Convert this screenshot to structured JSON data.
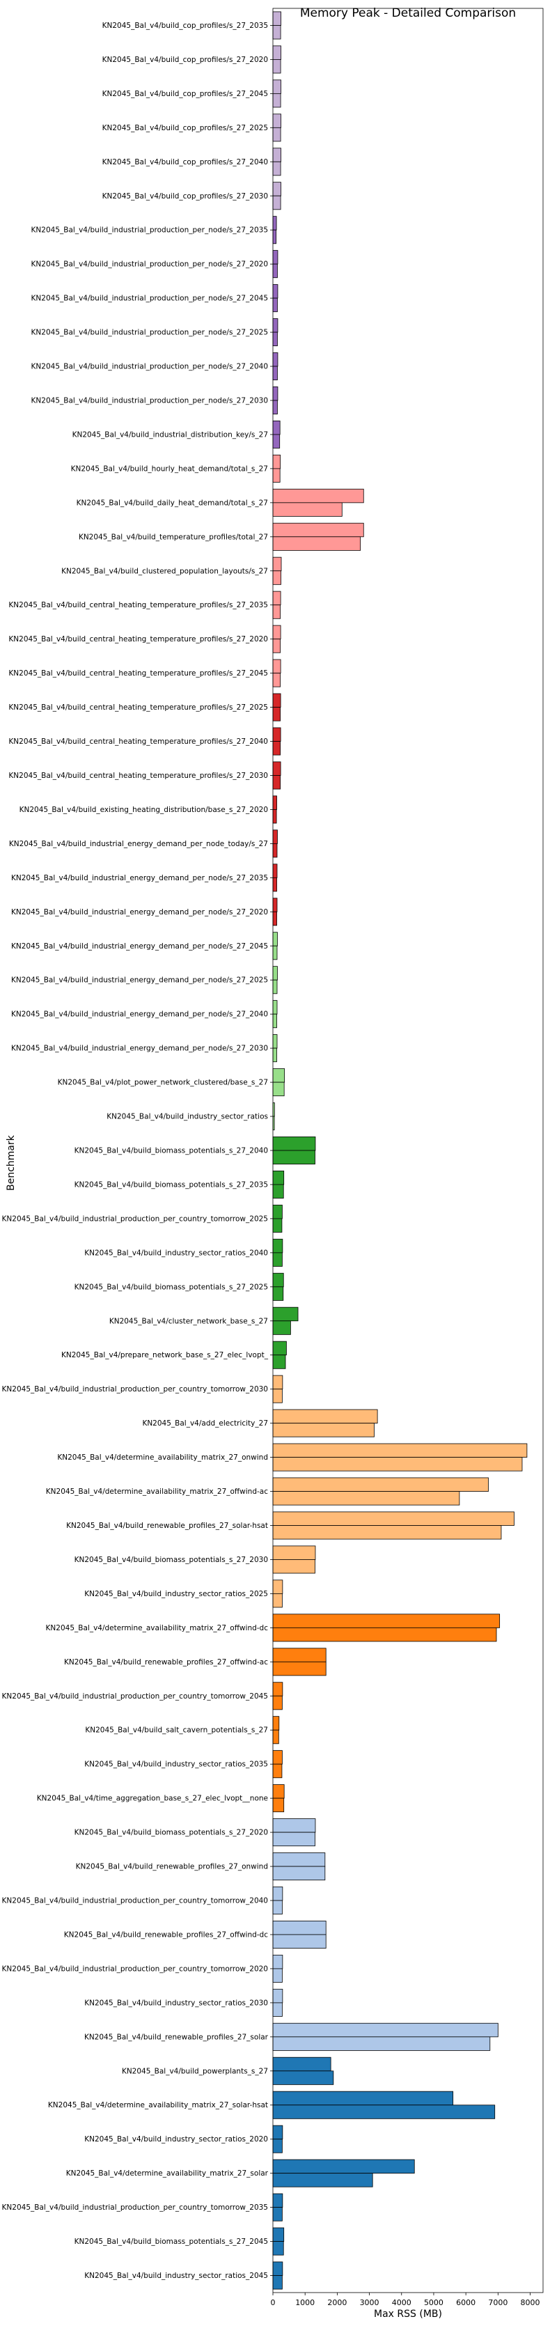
{
  "chart_data": {
    "type": "bar",
    "orientation": "horizontal",
    "title": "Memory Peak - Detailed Comparison",
    "xlabel": "Max RSS (MB)",
    "ylabel": "Benchmark",
    "xlim": [
      0,
      8400
    ],
    "xticks": [
      0,
      1000,
      2000,
      3000,
      4000,
      5000,
      6000,
      7000,
      8000
    ],
    "grid": false,
    "legend": "none",
    "categories": [
      "KN2045_Bal_v4/build_cop_profiles/s_27_2035",
      "KN2045_Bal_v4/build_cop_profiles/s_27_2020",
      "KN2045_Bal_v4/build_cop_profiles/s_27_2045",
      "KN2045_Bal_v4/build_cop_profiles/s_27_2025",
      "KN2045_Bal_v4/build_cop_profiles/s_27_2040",
      "KN2045_Bal_v4/build_cop_profiles/s_27_2030",
      "KN2045_Bal_v4/build_industrial_production_per_node/s_27_2035",
      "KN2045_Bal_v4/build_industrial_production_per_node/s_27_2020",
      "KN2045_Bal_v4/build_industrial_production_per_node/s_27_2045",
      "KN2045_Bal_v4/build_industrial_production_per_node/s_27_2025",
      "KN2045_Bal_v4/build_industrial_production_per_node/s_27_2040",
      "KN2045_Bal_v4/build_industrial_production_per_node/s_27_2030",
      "KN2045_Bal_v4/build_industrial_distribution_key/s_27",
      "KN2045_Bal_v4/build_hourly_heat_demand/total_s_27",
      "KN2045_Bal_v4/build_daily_heat_demand/total_s_27",
      "KN2045_Bal_v4/build_temperature_profiles/total_27",
      "KN2045_Bal_v4/build_clustered_population_layouts/s_27",
      "KN2045_Bal_v4/build_central_heating_temperature_profiles/s_27_2035",
      "KN2045_Bal_v4/build_central_heating_temperature_profiles/s_27_2020",
      "KN2045_Bal_v4/build_central_heating_temperature_profiles/s_27_2045",
      "KN2045_Bal_v4/build_central_heating_temperature_profiles/s_27_2025",
      "KN2045_Bal_v4/build_central_heating_temperature_profiles/s_27_2040",
      "KN2045_Bal_v4/build_central_heating_temperature_profiles/s_27_2030",
      "KN2045_Bal_v4/build_existing_heating_distribution/base_s_27_2020",
      "KN2045_Bal_v4/build_industrial_energy_demand_per_node_today/s_27",
      "KN2045_Bal_v4/build_industrial_energy_demand_per_node/s_27_2035",
      "KN2045_Bal_v4/build_industrial_energy_demand_per_node/s_27_2020",
      "KN2045_Bal_v4/build_industrial_energy_demand_per_node/s_27_2045",
      "KN2045_Bal_v4/build_industrial_energy_demand_per_node/s_27_2025",
      "KN2045_Bal_v4/build_industrial_energy_demand_per_node/s_27_2040",
      "KN2045_Bal_v4/build_industrial_energy_demand_per_node/s_27_2030",
      "KN2045_Bal_v4/plot_power_network_clustered/base_s_27",
      "KN2045_Bal_v4/build_industry_sector_ratios",
      "KN2045_Bal_v4/build_biomass_potentials_s_27_2040",
      "KN2045_Bal_v4/build_biomass_potentials_s_27_2035",
      "KN2045_Bal_v4/build_industrial_production_per_country_tomorrow_2025",
      "KN2045_Bal_v4/build_industry_sector_ratios_2040",
      "KN2045_Bal_v4/build_biomass_potentials_s_27_2025",
      "KN2045_Bal_v4/cluster_network_base_s_27",
      "KN2045_Bal_v4/prepare_network_base_s_27_elec_lvopt_",
      "KN2045_Bal_v4/build_industrial_production_per_country_tomorrow_2030",
      "KN2045_Bal_v4/add_electricity_27",
      "KN2045_Bal_v4/determine_availability_matrix_27_onwind",
      "KN2045_Bal_v4/determine_availability_matrix_27_offwind-ac",
      "KN2045_Bal_v4/build_renewable_profiles_27_solar-hsat",
      "KN2045_Bal_v4/build_biomass_potentials_s_27_2030",
      "KN2045_Bal_v4/build_industry_sector_ratios_2025",
      "KN2045_Bal_v4/determine_availability_matrix_27_offwind-dc",
      "KN2045_Bal_v4/build_renewable_profiles_27_offwind-ac",
      "KN2045_Bal_v4/build_industrial_production_per_country_tomorrow_2045",
      "KN2045_Bal_v4/build_salt_cavern_potentials_s_27",
      "KN2045_Bal_v4/build_industry_sector_ratios_2035",
      "KN2045_Bal_v4/time_aggregation_base_s_27_elec_lvopt__none",
      "KN2045_Bal_v4/build_biomass_potentials_s_27_2020",
      "KN2045_Bal_v4/build_renewable_profiles_27_onwind",
      "KN2045_Bal_v4/build_industrial_production_per_country_tomorrow_2040",
      "KN2045_Bal_v4/build_renewable_profiles_27_offwind-dc",
      "KN2045_Bal_v4/build_industrial_production_per_country_tomorrow_2020",
      "KN2045_Bal_v4/build_industry_sector_ratios_2030",
      "KN2045_Bal_v4/build_renewable_profiles_27_solar",
      "KN2045_Bal_v4/build_powerplants_s_27",
      "KN2045_Bal_v4/determine_availability_matrix_27_solar-hsat",
      "KN2045_Bal_v4/build_industry_sector_ratios_2020",
      "KN2045_Bal_v4/determine_availability_matrix_27_solar",
      "KN2045_Bal_v4/build_industrial_production_per_country_tomorrow_2035",
      "KN2045_Bal_v4/build_biomass_potentials_s_27_2045",
      "KN2045_Bal_v4/build_industry_sector_ratios_2045"
    ],
    "bars": [
      {
        "v": [
          250,
          240
        ],
        "c": "#c5b0d5"
      },
      {
        "v": [
          250,
          240
        ],
        "c": "#c5b0d5"
      },
      {
        "v": [
          250,
          240
        ],
        "c": "#c5b0d5"
      },
      {
        "v": [
          250,
          240
        ],
        "c": "#c5b0d5"
      },
      {
        "v": [
          250,
          240
        ],
        "c": "#c5b0d5"
      },
      {
        "v": [
          250,
          240
        ],
        "c": "#c5b0d5"
      },
      {
        "v": [
          110,
          100
        ],
        "c": "#9467bd"
      },
      {
        "v": [
          150,
          140
        ],
        "c": "#9467bd"
      },
      {
        "v": [
          150,
          140
        ],
        "c": "#9467bd"
      },
      {
        "v": [
          150,
          140
        ],
        "c": "#9467bd"
      },
      {
        "v": [
          150,
          140
        ],
        "c": "#9467bd"
      },
      {
        "v": [
          150,
          140
        ],
        "c": "#9467bd"
      },
      {
        "v": [
          220,
          210
        ],
        "c": "#9467bd"
      },
      {
        "v": [
          230,
          220
        ],
        "c": "#ff9896"
      },
      {
        "v": [
          2820,
          2150
        ],
        "c": "#ff9896"
      },
      {
        "v": [
          2820,
          2720
        ],
        "c": "#ff9896"
      },
      {
        "v": [
          260,
          250
        ],
        "c": "#ff9896"
      },
      {
        "v": [
          240,
          230
        ],
        "c": "#ff9896"
      },
      {
        "v": [
          240,
          230
        ],
        "c": "#ff9896"
      },
      {
        "v": [
          240,
          230
        ],
        "c": "#ff9896"
      },
      {
        "v": [
          240,
          230
        ],
        "c": "#d62728"
      },
      {
        "v": [
          240,
          230
        ],
        "c": "#d62728"
      },
      {
        "v": [
          240,
          230
        ],
        "c": "#d62728"
      },
      {
        "v": [
          120,
          110
        ],
        "c": "#d62728"
      },
      {
        "v": [
          140,
          130
        ],
        "c": "#d62728"
      },
      {
        "v": [
          130,
          120
        ],
        "c": "#d62728"
      },
      {
        "v": [
          130,
          120
        ],
        "c": "#d62728"
      },
      {
        "v": [
          140,
          130
        ],
        "c": "#98df8a"
      },
      {
        "v": [
          140,
          130
        ],
        "c": "#98df8a"
      },
      {
        "v": [
          130,
          120
        ],
        "c": "#98df8a"
      },
      {
        "v": [
          130,
          120
        ],
        "c": "#98df8a"
      },
      {
        "v": [
          360,
          350
        ],
        "c": "#98df8a"
      },
      {
        "v": [
          50,
          45
        ],
        "c": "#98df8a"
      },
      {
        "v": [
          1320,
          1310
        ],
        "c": "#2ca02c"
      },
      {
        "v": [
          340,
          330
        ],
        "c": "#2ca02c"
      },
      {
        "v": [
          290,
          280
        ],
        "c": "#2ca02c"
      },
      {
        "v": [
          300,
          290
        ],
        "c": "#2ca02c"
      },
      {
        "v": [
          330,
          320
        ],
        "c": "#2ca02c"
      },
      {
        "v": [
          780,
          550
        ],
        "c": "#2ca02c"
      },
      {
        "v": [
          420,
          390
        ],
        "c": "#2ca02c"
      },
      {
        "v": [
          300,
          290
        ],
        "c": "#ffbb78"
      },
      {
        "v": [
          3250,
          3150
        ],
        "c": "#ffbb78"
      },
      {
        "v": [
          7900,
          7750
        ],
        "c": "#ffbb78"
      },
      {
        "v": [
          6700,
          5800
        ],
        "c": "#ffbb78"
      },
      {
        "v": [
          7500,
          7100
        ],
        "c": "#ffbb78"
      },
      {
        "v": [
          1320,
          1310
        ],
        "c": "#ffbb78"
      },
      {
        "v": [
          300,
          290
        ],
        "c": "#ffbb78"
      },
      {
        "v": [
          7050,
          6950
        ],
        "c": "#ff7f0e"
      },
      {
        "v": [
          1650,
          1650
        ],
        "c": "#ff7f0e"
      },
      {
        "v": [
          300,
          290
        ],
        "c": "#ff7f0e"
      },
      {
        "v": [
          190,
          180
        ],
        "c": "#ff7f0e"
      },
      {
        "v": [
          290,
          280
        ],
        "c": "#ff7f0e"
      },
      {
        "v": [
          350,
          340
        ],
        "c": "#ff7f0e"
      },
      {
        "v": [
          1320,
          1310
        ],
        "c": "#aec7e8"
      },
      {
        "v": [
          1620,
          1620
        ],
        "c": "#aec7e8"
      },
      {
        "v": [
          300,
          290
        ],
        "c": "#aec7e8"
      },
      {
        "v": [
          1650,
          1650
        ],
        "c": "#aec7e8"
      },
      {
        "v": [
          300,
          290
        ],
        "c": "#aec7e8"
      },
      {
        "v": [
          300,
          290
        ],
        "c": "#aec7e8"
      },
      {
        "v": [
          7000,
          6750
        ],
        "c": "#aec7e8"
      },
      {
        "v": [
          1800,
          1880
        ],
        "c": "#1f77b4"
      },
      {
        "v": [
          5600,
          6900
        ],
        "c": "#1f77b4"
      },
      {
        "v": [
          300,
          290
        ],
        "c": "#1f77b4"
      },
      {
        "v": [
          4400,
          3100
        ],
        "c": "#1f77b4"
      },
      {
        "v": [
          300,
          290
        ],
        "c": "#1f77b4"
      },
      {
        "v": [
          340,
          330
        ],
        "c": "#1f77b4"
      },
      {
        "v": [
          300,
          290
        ],
        "c": "#1f77b4"
      }
    ]
  }
}
